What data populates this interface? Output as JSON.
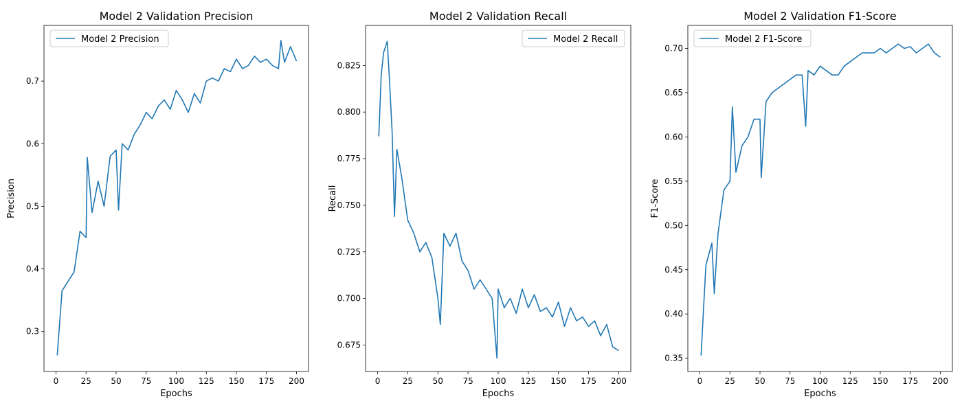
{
  "chart_data": [
    {
      "type": "line",
      "title": "Model 2 Validation Precision",
      "xlabel": "Epochs",
      "ylabel": "Precision",
      "xlim": [
        -10,
        210
      ],
      "ylim": [
        0.236,
        0.789
      ],
      "xticks": [
        0,
        25,
        50,
        75,
        100,
        125,
        150,
        175,
        200
      ],
      "yticks": [
        0.3,
        0.4,
        0.5,
        0.6,
        0.7
      ],
      "ytick_decimals": 1,
      "legend_position": "upper-left",
      "grid": false,
      "series": [
        {
          "name": "Model 2 Precision",
          "color": "#1f77b4",
          "x": [
            1,
            5,
            10,
            15,
            20,
            25,
            26,
            30,
            35,
            40,
            45,
            50,
            52,
            55,
            60,
            65,
            70,
            75,
            80,
            85,
            90,
            95,
            100,
            105,
            110,
            115,
            120,
            125,
            130,
            135,
            140,
            145,
            150,
            155,
            160,
            165,
            170,
            175,
            180,
            185,
            187,
            190,
            195,
            200
          ],
          "y": [
            0.262,
            0.365,
            0.38,
            0.395,
            0.46,
            0.45,
            0.578,
            0.49,
            0.54,
            0.5,
            0.58,
            0.59,
            0.494,
            0.6,
            0.59,
            0.615,
            0.63,
            0.65,
            0.64,
            0.66,
            0.67,
            0.655,
            0.685,
            0.67,
            0.65,
            0.68,
            0.665,
            0.7,
            0.705,
            0.7,
            0.72,
            0.715,
            0.735,
            0.72,
            0.725,
            0.74,
            0.73,
            0.735,
            0.725,
            0.72,
            0.765,
            0.73,
            0.755,
            0.732
          ]
        }
      ]
    },
    {
      "type": "line",
      "title": "Model 2 Validation Recall",
      "xlabel": "Epochs",
      "ylabel": "Recall",
      "xlim": [
        -10,
        210
      ],
      "ylim": [
        0.6608,
        0.8465
      ],
      "xticks": [
        0,
        25,
        50,
        75,
        100,
        125,
        150,
        175,
        200
      ],
      "yticks": [
        0.675,
        0.7,
        0.725,
        0.75,
        0.775,
        0.8,
        0.825
      ],
      "ytick_decimals": 3,
      "legend_position": "upper-right",
      "grid": false,
      "series": [
        {
          "name": "Model 2 Recall",
          "color": "#1f77b4",
          "x": [
            1,
            3,
            5,
            8,
            10,
            12,
            14,
            16,
            20,
            25,
            30,
            35,
            40,
            45,
            50,
            52,
            55,
            60,
            65,
            70,
            75,
            80,
            85,
            90,
            95,
            99,
            100,
            105,
            110,
            115,
            120,
            125,
            130,
            135,
            140,
            145,
            150,
            155,
            160,
            165,
            170,
            175,
            180,
            185,
            190,
            195,
            200
          ],
          "y": [
            0.787,
            0.82,
            0.832,
            0.838,
            0.815,
            0.79,
            0.744,
            0.78,
            0.765,
            0.742,
            0.735,
            0.725,
            0.73,
            0.722,
            0.7,
            0.686,
            0.735,
            0.728,
            0.735,
            0.72,
            0.715,
            0.705,
            0.71,
            0.705,
            0.7,
            0.668,
            0.705,
            0.695,
            0.7,
            0.692,
            0.705,
            0.695,
            0.702,
            0.693,
            0.695,
            0.69,
            0.698,
            0.685,
            0.695,
            0.688,
            0.69,
            0.685,
            0.688,
            0.68,
            0.686,
            0.674,
            0.672
          ]
        }
      ]
    },
    {
      "type": "line",
      "title": "Model 2 Validation F1-Score",
      "xlabel": "Epochs",
      "ylabel": "F1-Score",
      "xlim": [
        -10,
        210
      ],
      "ylim": [
        0.335,
        0.726
      ],
      "xticks": [
        0,
        25,
        50,
        75,
        100,
        125,
        150,
        175,
        200
      ],
      "yticks": [
        0.35,
        0.4,
        0.45,
        0.5,
        0.55,
        0.6,
        0.65,
        0.7
      ],
      "ytick_decimals": 2,
      "legend_position": "upper-left",
      "grid": false,
      "series": [
        {
          "name": "Model 2 F1-Score",
          "color": "#1f77b4",
          "x": [
            1,
            3,
            5,
            8,
            10,
            12,
            15,
            20,
            25,
            27,
            30,
            35,
            40,
            45,
            50,
            51,
            55,
            60,
            65,
            70,
            75,
            80,
            85,
            88,
            90,
            95,
            100,
            105,
            110,
            115,
            120,
            125,
            130,
            135,
            140,
            145,
            150,
            155,
            160,
            165,
            170,
            175,
            180,
            185,
            190,
            195,
            200
          ],
          "y": [
            0.353,
            0.405,
            0.455,
            0.47,
            0.48,
            0.423,
            0.49,
            0.54,
            0.55,
            0.634,
            0.56,
            0.59,
            0.6,
            0.62,
            0.62,
            0.554,
            0.64,
            0.65,
            0.655,
            0.66,
            0.665,
            0.67,
            0.67,
            0.612,
            0.675,
            0.67,
            0.68,
            0.675,
            0.67,
            0.67,
            0.68,
            0.685,
            0.69,
            0.695,
            0.695,
            0.695,
            0.7,
            0.695,
            0.7,
            0.705,
            0.7,
            0.702,
            0.695,
            0.7,
            0.705,
            0.695,
            0.69
          ]
        }
      ]
    }
  ]
}
